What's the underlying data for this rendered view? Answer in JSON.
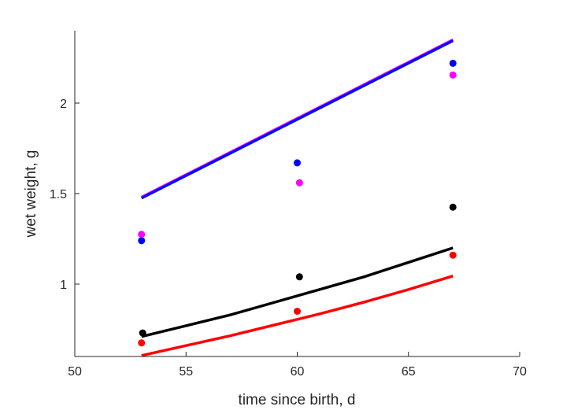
{
  "chart_data": {
    "type": "scatter",
    "title": "",
    "xlabel": "time since birth, d",
    "ylabel": "wet weight, g",
    "xlim": [
      50,
      70
    ],
    "ylim": [
      0.6,
      2.4
    ],
    "xticks": [
      50,
      55,
      60,
      65,
      70
    ],
    "yticks": [
      1,
      1.5,
      2
    ],
    "grid": false,
    "series": [
      {
        "color": "#0000ff",
        "kind": "points",
        "x": [
          53,
          60,
          67
        ],
        "y": [
          1.24,
          1.67,
          2.22
        ]
      },
      {
        "color": "#ff00ff",
        "kind": "points",
        "x": [
          53,
          60.1,
          67
        ],
        "y": [
          1.275,
          1.56,
          2.155
        ]
      },
      {
        "color": "#000000",
        "kind": "points",
        "x": [
          53.05,
          60.1,
          67
        ],
        "y": [
          0.73,
          1.04,
          1.425
        ]
      },
      {
        "color": "#ff0000",
        "kind": "points",
        "x": [
          53,
          60,
          67
        ],
        "y": [
          0.675,
          0.85,
          1.16
        ]
      },
      {
        "color": "#ff00ff",
        "kind": "line",
        "x": [
          53,
          67
        ],
        "y": [
          1.48,
          2.35
        ]
      },
      {
        "color": "#0000ff",
        "kind": "line",
        "x": [
          53,
          67
        ],
        "y": [
          1.475,
          2.345
        ]
      },
      {
        "color": "#000000",
        "kind": "line",
        "x": [
          53,
          55,
          57,
          59,
          61,
          63,
          65,
          67
        ],
        "y": [
          0.71,
          0.77,
          0.83,
          0.9,
          0.97,
          1.04,
          1.12,
          1.2
        ]
      },
      {
        "color": "#ff0000",
        "kind": "line",
        "x": [
          53,
          55,
          57,
          59,
          61,
          63,
          65,
          67
        ],
        "y": [
          0.605,
          0.66,
          0.715,
          0.775,
          0.835,
          0.9,
          0.97,
          1.045
        ]
      }
    ]
  }
}
